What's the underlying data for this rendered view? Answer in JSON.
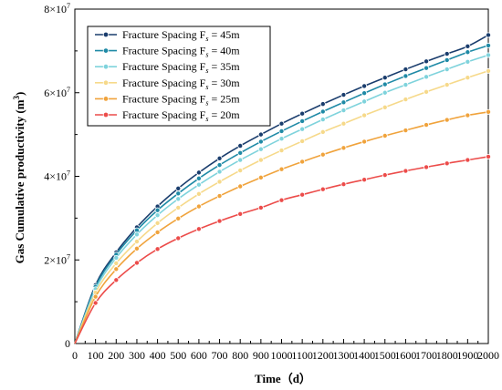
{
  "chart_data": {
    "type": "line",
    "xlabel": "Time（d）",
    "ylabel": "Gas Cumulative productivity (m",
    "ylabel_sup": "3",
    "ylabel_end": ")",
    "xlim": [
      0,
      2000
    ],
    "ylim": [
      0,
      80000000
    ],
    "xticks": [
      0,
      100,
      200,
      300,
      400,
      500,
      600,
      700,
      800,
      900,
      1000,
      1100,
      1200,
      1300,
      1400,
      1500,
      1600,
      1700,
      1800,
      1900,
      2000
    ],
    "xtick_labels": [
      "0",
      "100",
      "200",
      "300",
      "400",
      "500",
      "600",
      "700",
      "800",
      "900",
      "1000",
      "1100",
      "1200",
      "1300",
      "1400",
      "1500",
      "1600",
      "1700",
      "1800",
      "1900",
      "2000"
    ],
    "yticks": [
      0,
      20000000,
      40000000,
      60000000,
      80000000
    ],
    "ytick_labels": [
      {
        "base": "0",
        "exp": ""
      },
      {
        "base": "2×10",
        "exp": "7"
      },
      {
        "base": "4×10",
        "exp": "7"
      },
      {
        "base": "6×10",
        "exp": "7"
      },
      {
        "base": "8×10",
        "exp": "7"
      }
    ],
    "grid": false,
    "legend_position": "top-left",
    "x": [
      0,
      100,
      200,
      300,
      400,
      500,
      600,
      700,
      800,
      900,
      1000,
      1100,
      1200,
      1300,
      1400,
      1500,
      1600,
      1700,
      1800,
      1900,
      2000
    ],
    "series": [
      {
        "name": "Fracture Spacing F",
        "name_sub": "s",
        "name_suffix": " = 45m",
        "color": "#1a3d6d",
        "values": [
          0,
          14000000,
          21800000,
          27800000,
          32800000,
          37100000,
          40900000,
          44300000,
          47300000,
          50000000,
          52600000,
          55000000,
          57300000,
          59500000,
          61600000,
          63600000,
          65600000,
          67500000,
          69300000,
          71100000,
          73800000
        ]
      },
      {
        "name": "Fracture Spacing F",
        "name_sub": "s",
        "name_suffix": " = 40m",
        "color": "#1f8aa6",
        "values": [
          0,
          13600000,
          21300000,
          27100000,
          31900000,
          35900000,
          39500000,
          42700000,
          45600000,
          48300000,
          50800000,
          53200000,
          55500000,
          57700000,
          59900000,
          62000000,
          64000000,
          65900000,
          67800000,
          69700000,
          71300000
        ]
      },
      {
        "name": "Fracture Spacing F",
        "name_sub": "s",
        "name_suffix": " = 35m",
        "color": "#7fd3dc",
        "values": [
          0,
          13000000,
          20500000,
          26100000,
          30700000,
          34600000,
          38000000,
          41100000,
          43900000,
          46500000,
          49000000,
          51300000,
          53600000,
          55800000,
          57900000,
          60000000,
          61900000,
          63800000,
          65600000,
          67400000,
          69000000
        ]
      },
      {
        "name": "Fracture Spacing F",
        "name_sub": "s",
        "name_suffix": " = 30m",
        "color": "#f6d98a",
        "values": [
          0,
          12200000,
          19200000,
          24400000,
          28800000,
          32500000,
          35800000,
          38700000,
          41400000,
          43900000,
          46200000,
          48400000,
          50600000,
          52600000,
          54600000,
          56500000,
          58400000,
          60200000,
          61900000,
          63600000,
          65200000
        ]
      },
      {
        "name": "Fracture Spacing F",
        "name_sub": "s",
        "name_suffix": " = 25m",
        "color": "#f0a33c",
        "values": [
          0,
          11200000,
          17800000,
          22700000,
          26600000,
          29900000,
          32800000,
          35300000,
          37600000,
          39700000,
          41700000,
          43500000,
          45200000,
          46800000,
          48300000,
          49700000,
          51000000,
          52300000,
          53500000,
          54600000,
          55400000
        ]
      },
      {
        "name": "Fracture Spacing F",
        "name_sub": "s",
        "name_suffix": " = 20m",
        "color": "#ec4c4a",
        "values": [
          0,
          9700000,
          15200000,
          19300000,
          22600000,
          25200000,
          27400000,
          29300000,
          31000000,
          32500000,
          34300000,
          35600000,
          36900000,
          38100000,
          39200000,
          40300000,
          41300000,
          42200000,
          43100000,
          43900000,
          44700000
        ]
      }
    ]
  }
}
